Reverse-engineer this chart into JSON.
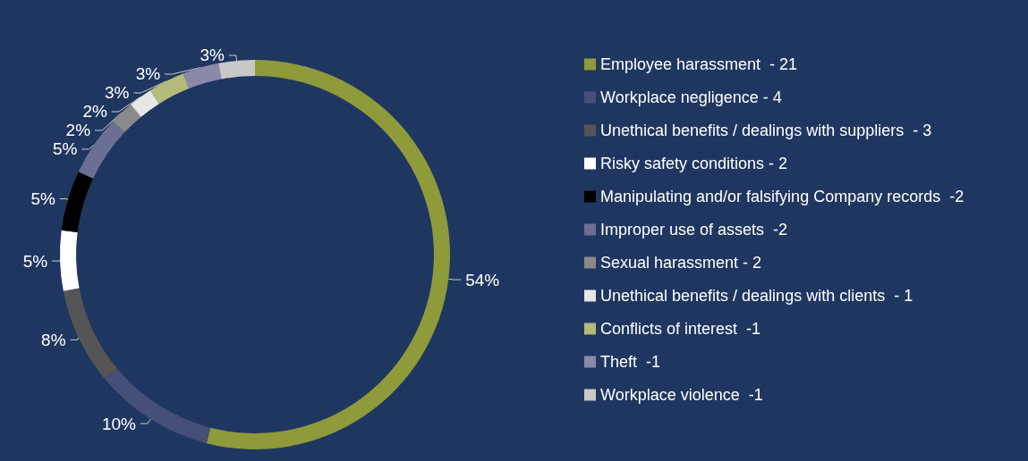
{
  "chart_data": {
    "type": "donut",
    "categories": [
      "Employee harassment  - 21",
      "Workplace negligence - 4",
      "Unethical benefits / dealings with suppliers  - 3",
      "Risky safety conditions - 2",
      "Manipulating and/or falsifying Company records  -2",
      "Improper use of assets  -2",
      "Sexual harassment - 2",
      "Unethical benefits / dealings with clients  - 1",
      "Conflicts of interest  -1",
      "Theft  -1",
      "Workplace violence  -1"
    ],
    "values": [
      54,
      10,
      8,
      5,
      5,
      5,
      2,
      2,
      3,
      3,
      3
    ],
    "value_labels": [
      "54%",
      "10%",
      "8%",
      "5%",
      "5%",
      "5%",
      "2%",
      "2%",
      "3%",
      "3%",
      "3%"
    ],
    "colors": [
      "#8f9a3a",
      "#464f78",
      "#555555",
      "#ffffff",
      "#000000",
      "#6b6f94",
      "#8a8a8a",
      "#e6e6e6",
      "#b5ba7a",
      "#8a8aa8",
      "#c8c8c8"
    ],
    "legend": "right"
  }
}
